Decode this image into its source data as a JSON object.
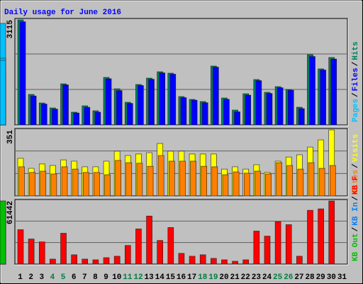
{
  "title": "Daily usage for June 2016",
  "categories": [
    "1",
    "2",
    "3",
    "4",
    "5",
    "6",
    "7",
    "8",
    "9",
    "10",
    "11",
    "12",
    "13",
    "14",
    "15",
    "16",
    "17",
    "18",
    "19",
    "20",
    "21",
    "22",
    "23",
    "24",
    "25",
    "26",
    "27",
    "28",
    "29",
    "30",
    "31"
  ],
  "weekend": [
    "4",
    "5",
    "11",
    "12",
    "18",
    "19",
    "25",
    "26"
  ],
  "weekend_color": "#008040",
  "legend_separator": "/",
  "chart_data": [
    {
      "type": "bar",
      "ylim": [
        0,
        3115
      ],
      "yticks": [
        3115
      ],
      "series": [
        {
          "name": "Hits",
          "color": "#00805c",
          "values": [
            3115,
            905,
            652,
            505,
            1220,
            379,
            568,
            421,
            1410,
            1073,
            673,
            1200,
            1389,
            1578,
            1536,
            842,
            758,
            695,
            1747,
            800,
            442,
            926,
            1347,
            968,
            1136,
            1052,
            526,
            2084,
            1663,
            2000,
            0
          ]
        },
        {
          "name": "Files",
          "color": "#0000ff",
          "values": [
            3060,
            860,
            620,
            470,
            1190,
            355,
            525,
            380,
            1370,
            1020,
            640,
            1170,
            1355,
            1545,
            1505,
            810,
            735,
            660,
            1715,
            760,
            390,
            885,
            1315,
            935,
            1105,
            1030,
            485,
            2030,
            1630,
            1955,
            0
          ]
        },
        {
          "name": "Pages",
          "color": "#00c0ff",
          "values": [
            3010,
            820,
            590,
            442,
            1157,
            337,
            484,
            337,
            1326,
            968,
            610,
            1136,
            1326,
            1515,
            1473,
            779,
            716,
            631,
            1684,
            716,
            337,
            842,
            1284,
            905,
            1073,
            1010,
            442,
            1978,
            1600,
            1915,
            0
          ]
        }
      ]
    },
    {
      "type": "bar",
      "ylim": [
        0,
        351
      ],
      "yticks": [
        351
      ],
      "series": [
        {
          "name": "Visits",
          "color": "#ffff00",
          "values": [
            200,
            147,
            170,
            162,
            192,
            185,
            155,
            155,
            185,
            238,
            215,
            223,
            230,
            279,
            238,
            238,
            223,
            223,
            223,
            143,
            155,
            143,
            166,
            125,
            185,
            207,
            219,
            260,
            298,
            351,
            0
          ]
        },
        {
          "name": "Sites",
          "color": "#ff8000",
          "values": [
            155,
            125,
            132,
            117,
            155,
            143,
            125,
            125,
            113,
            189,
            177,
            174,
            158,
            215,
            185,
            185,
            185,
            158,
            155,
            113,
            128,
            121,
            132,
            117,
            177,
            162,
            143,
            177,
            147,
            162,
            0
          ]
        }
      ]
    },
    {
      "type": "bar",
      "ylim": [
        0,
        61442
      ],
      "yticks": [
        61442
      ],
      "series": [
        {
          "name": "KB F",
          "color": "#ff0000",
          "values": [
            33514,
            24437,
            21644,
            4888,
            30023,
            9077,
            4888,
            4189,
            6284,
            7680,
            18153,
            34212,
            46780,
            23040,
            35609,
            10473,
            7680,
            9077,
            5586,
            4189,
            2793,
            4189,
            32118,
            27230,
            41194,
            38401,
            7680,
            52365,
            53762,
            61442,
            0
          ]
        },
        {
          "name": "KB In",
          "color": "#0080ff",
          "values": [
            0,
            0,
            0,
            0,
            0,
            0,
            0,
            0,
            0,
            0,
            0,
            0,
            0,
            0,
            0,
            0,
            0,
            0,
            0,
            0,
            0,
            0,
            0,
            0,
            0,
            0,
            0,
            0,
            0,
            0,
            0
          ]
        },
        {
          "name": "KB Out",
          "color": "#00c000",
          "values": [
            33514,
            24437,
            21644,
            4888,
            30023,
            9077,
            4888,
            4189,
            6284,
            7680,
            18153,
            34212,
            46780,
            23040,
            35609,
            10473,
            7680,
            9077,
            5586,
            4189,
            2793,
            4189,
            32118,
            27230,
            41194,
            38401,
            7680,
            52365,
            53762,
            61442,
            0
          ]
        }
      ]
    }
  ]
}
